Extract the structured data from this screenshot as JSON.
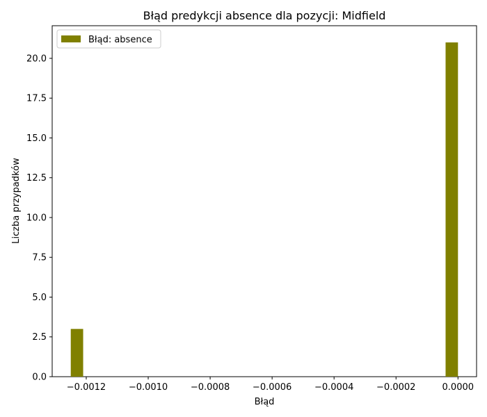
{
  "chart_data": {
    "type": "bar",
    "title": "Błąd predykcji absence dla pozycji: Midfield",
    "xlabel": "Błąd",
    "ylabel": "Liczba przypadków",
    "series": [
      {
        "name": "Błąd: absence",
        "color": "#808000",
        "bins": [
          {
            "x_start": -0.00125,
            "x_end": -0.00121,
            "value": 3
          },
          {
            "x_start": -4e-05,
            "x_end": 0.0,
            "value": 21
          }
        ]
      }
    ],
    "xlim": [
      -0.00131,
      6e-05
    ],
    "ylim": [
      0,
      22.05
    ],
    "xticks": [
      -0.0012,
      -0.001,
      -0.0008,
      -0.0006,
      -0.0004,
      -0.0002,
      0.0
    ],
    "xtick_labels": [
      "−0.0012",
      "−0.0010",
      "−0.0008",
      "−0.0006",
      "−0.0004",
      "−0.0002",
      "0.0000"
    ],
    "yticks": [
      0.0,
      2.5,
      5.0,
      7.5,
      10.0,
      12.5,
      15.0,
      17.5,
      20.0
    ],
    "ytick_labels": [
      "0.0",
      "2.5",
      "5.0",
      "7.5",
      "10.0",
      "12.5",
      "15.0",
      "17.5",
      "20.0"
    ],
    "grid": false,
    "legend_position": "top-left"
  }
}
